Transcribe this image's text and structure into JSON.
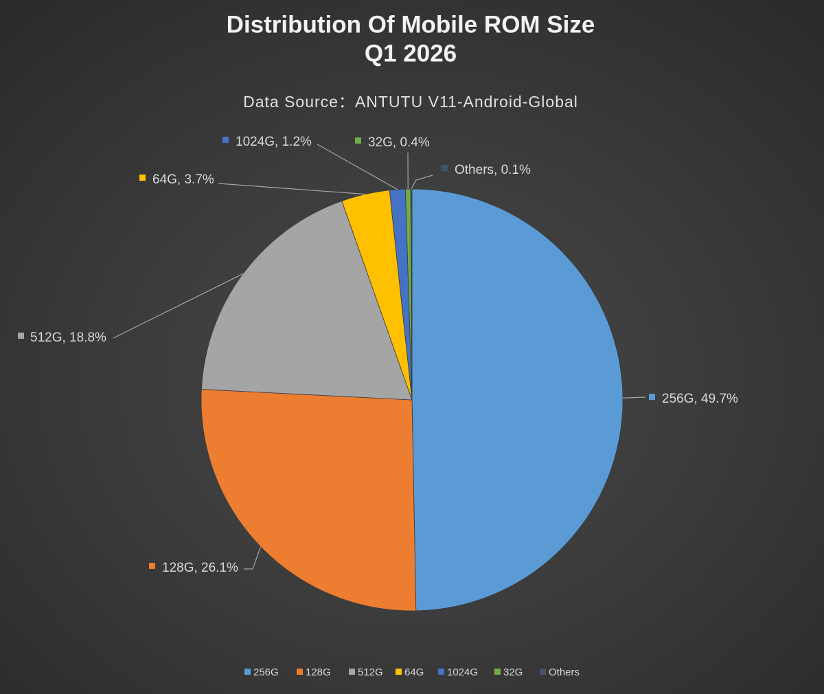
{
  "chart_data": {
    "type": "pie",
    "title": [
      "Distribution Of Mobile ROM Size",
      "Q1 2026"
    ],
    "subtitle": "Data Source：ANTUTU V11-Android-Global",
    "categories": [
      "256G",
      "128G",
      "512G",
      "64G",
      "1024G",
      "32G",
      "Others"
    ],
    "values": [
      49.7,
      26.1,
      18.8,
      3.7,
      1.2,
      0.4,
      0.1
    ],
    "value_labels": [
      "256G, 49.7%",
      "128G, 26.1%",
      "512G, 18.8%",
      "64G, 3.7%",
      "1024G, 1.2%",
      "32G, 0.4%",
      "Others, 0.1%"
    ],
    "colors": [
      "#5b9bd5",
      "#ed7d31",
      "#a5a5a5",
      "#ffc000",
      "#4472c4",
      "#70ad47",
      "#44546a"
    ],
    "legend": "bottom"
  }
}
